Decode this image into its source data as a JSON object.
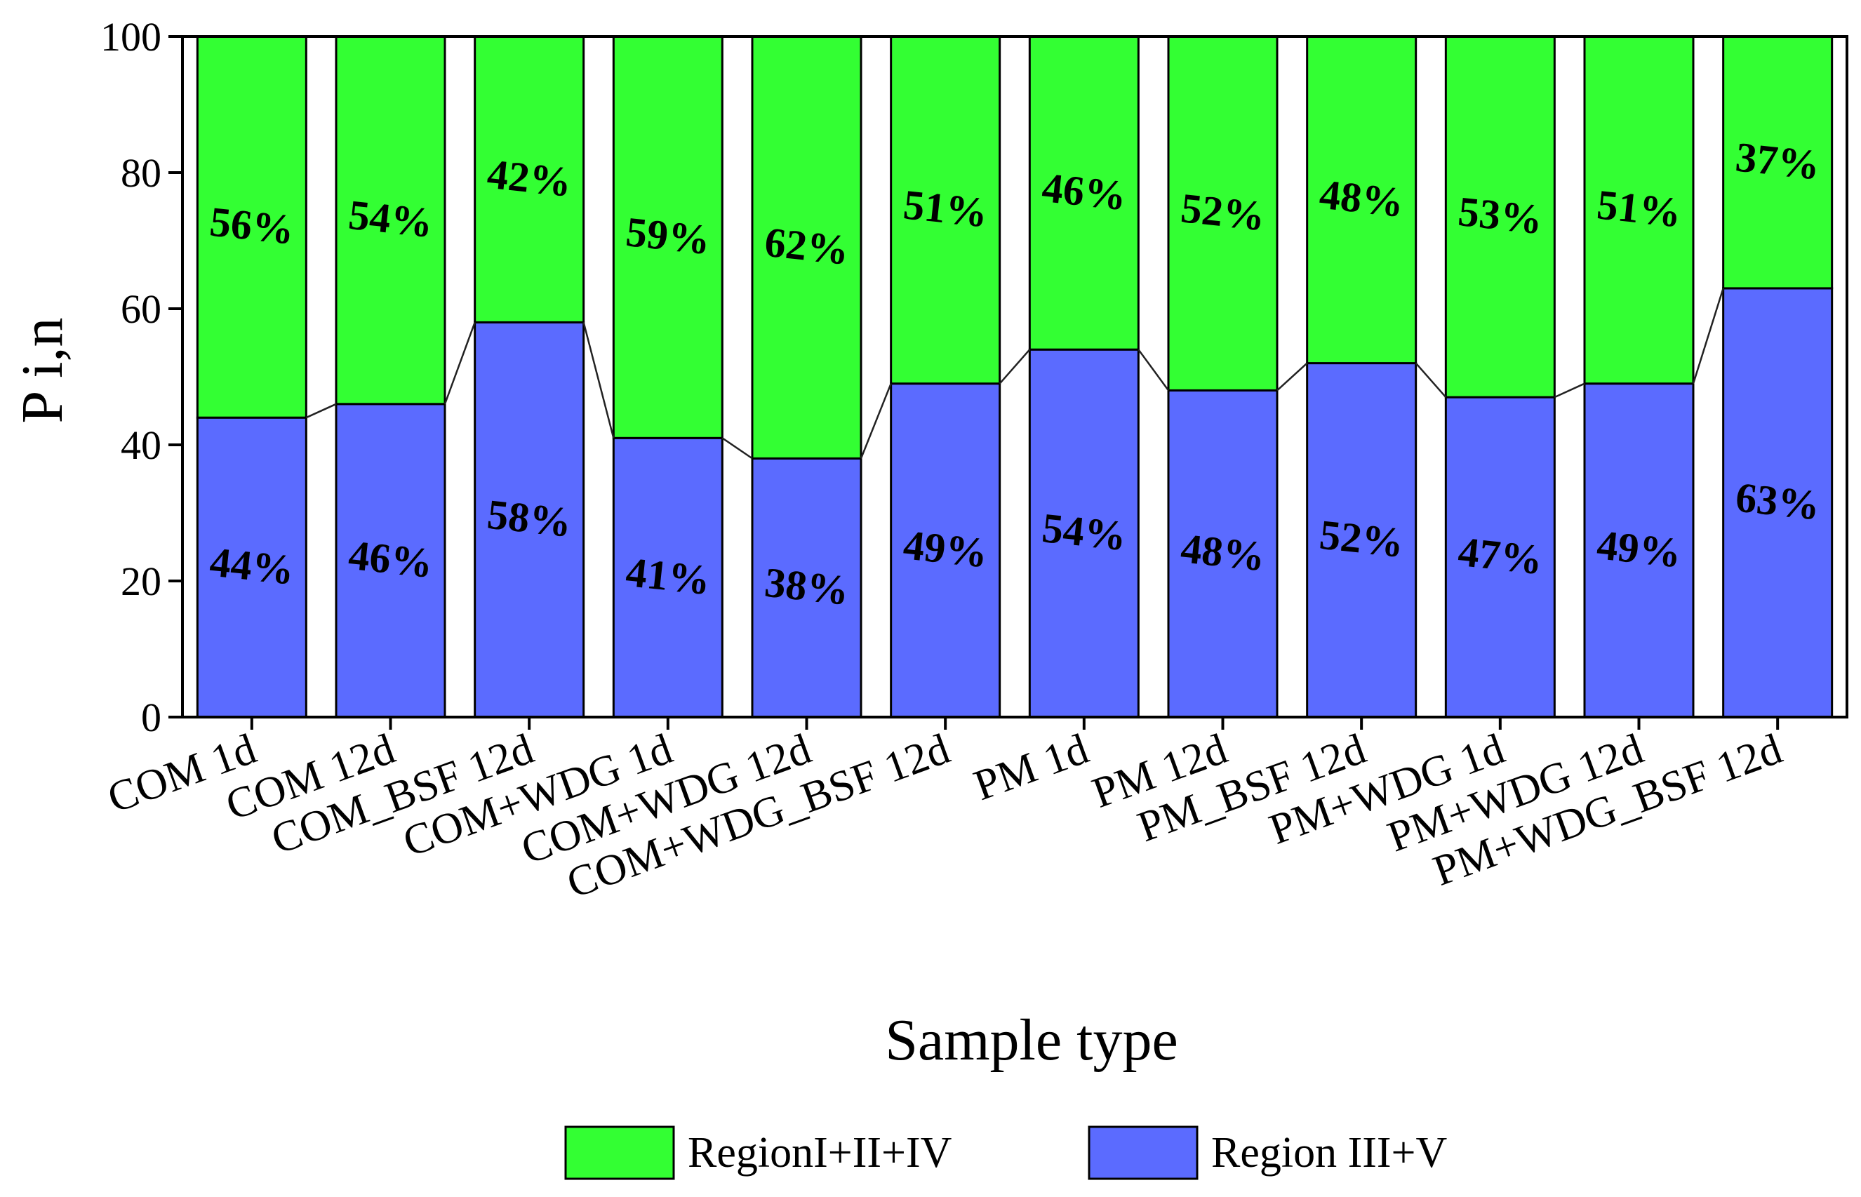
{
  "chart_data": {
    "type": "bar",
    "stacked": true,
    "categories": [
      "COM 1d",
      "COM 12d",
      "COM_BSF 12d",
      "COM+WDG 1d",
      "COM+WDG 12d",
      "COM+WDG_BSF 12d",
      "PM 1d",
      "PM 12d",
      "PM_BSF 12d",
      "PM+WDG 1d",
      "PM+WDG 12d",
      "PM+WDG_BSF 12d"
    ],
    "series": [
      {
        "name": "Region III+V",
        "color": "#5b6bff",
        "values": [
          44,
          46,
          58,
          41,
          38,
          49,
          54,
          48,
          52,
          47,
          49,
          63
        ],
        "labels": [
          "44%",
          "46%",
          "58%",
          "41%",
          "38%",
          "49%",
          "54%",
          "48%",
          "52%",
          "47%",
          "49%",
          "63%"
        ]
      },
      {
        "name": "RegionI+II+IV",
        "color": "#33ff33",
        "values": [
          56,
          54,
          42,
          59,
          62,
          51,
          46,
          52,
          48,
          53,
          51,
          37
        ],
        "labels": [
          "56%",
          "54%",
          "42%",
          "59%",
          "62%",
          "51%",
          "46%",
          "52%",
          "48%",
          "53%",
          "51%",
          "37%"
        ]
      }
    ],
    "xlabel": "Sample type",
    "ylabel": "P i,n",
    "ylim": [
      0,
      100
    ],
    "yticks": [
      0,
      20,
      40,
      60,
      80,
      100
    ],
    "ytick_labels": [
      "0",
      "20",
      "40",
      "60",
      "80",
      "100"
    ],
    "connector_lines": true,
    "legend": {
      "placement": "bottom-center",
      "entries": [
        {
          "label": "RegionI+II+IV",
          "color": "#33ff33"
        },
        {
          "label": "Region III+V",
          "color": "#5b6bff"
        }
      ]
    }
  }
}
